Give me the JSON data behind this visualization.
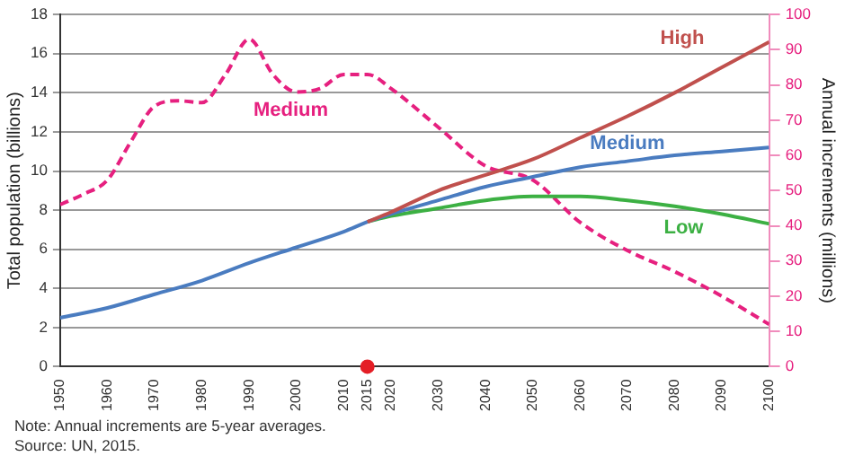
{
  "chart_data": {
    "type": "line",
    "xlabel": null,
    "ylabel": "Total population (billions)",
    "y2label": "Annual increments (millions)",
    "annotations": [
      "Note: Annual increments are 5-year averages.",
      "Source: UN, 2015."
    ],
    "series": [
      {
        "name": "High",
        "color": "#c0504d",
        "x": [
          2015,
          2020,
          2030,
          2040,
          2050,
          2060,
          2070,
          2080,
          2090,
          2100
        ],
        "values": [
          7.4,
          7.9,
          9.0,
          9.8,
          10.6,
          11.7,
          12.8,
          14.0,
          15.3,
          16.6
        ]
      },
      {
        "name": "Medium",
        "color": "#4a7cc0",
        "x": [
          1950,
          1960,
          1970,
          1980,
          1990,
          2000,
          2010,
          2015,
          2020,
          2030,
          2040,
          2050,
          2060,
          2070,
          2080,
          2090,
          2100
        ],
        "values": [
          2.5,
          3.0,
          3.7,
          4.4,
          5.3,
          6.1,
          6.9,
          7.4,
          7.8,
          8.5,
          9.2,
          9.7,
          10.2,
          10.5,
          10.8,
          11.0,
          11.2
        ]
      },
      {
        "name": "Low",
        "color": "#3cb043",
        "x": [
          2015,
          2020,
          2030,
          2040,
          2050,
          2060,
          2070,
          2080,
          2090,
          2100
        ],
        "values": [
          7.4,
          7.7,
          8.1,
          8.5,
          8.7,
          8.7,
          8.5,
          8.2,
          7.8,
          7.3
        ]
      },
      {
        "name": "Medium",
        "color": "#e6207f",
        "axis": "y2",
        "line_style": "dashed",
        "x": [
          1950,
          1955,
          1960,
          1965,
          1970,
          1975,
          1980,
          1985,
          1990,
          1995,
          2000,
          2005,
          2010,
          2015,
          2020,
          2030,
          2040,
          2050,
          2060,
          2070,
          2080,
          2090,
          2100
        ],
        "values": [
          46,
          49,
          53,
          64,
          74,
          75.5,
          75,
          83,
          93,
          83,
          78,
          79,
          83,
          83,
          79,
          68,
          57,
          53,
          41,
          33,
          27,
          20,
          12
        ]
      },
      {
        "type": "scatter",
        "color": "#e41e26",
        "marker": "circle",
        "x": [
          2015
        ],
        "values": [
          0
        ]
      }
    ],
    "xlim": [
      1950,
      2100
    ],
    "xticks": [
      1950,
      1960,
      1970,
      1980,
      1990,
      2000,
      2010,
      2015,
      2020,
      2030,
      2040,
      2050,
      2060,
      2070,
      2080,
      2090,
      2100
    ],
    "ylim": [
      0,
      18
    ],
    "yticks": [
      0,
      2,
      4,
      6,
      8,
      10,
      12,
      14,
      16,
      18
    ],
    "y2lim": [
      0,
      100
    ],
    "y2ticks": [
      0,
      10,
      20,
      30,
      40,
      50,
      60,
      70,
      80,
      90,
      100
    ],
    "grid": "y",
    "legend": false,
    "marker": "none",
    "line_style": "solid"
  }
}
